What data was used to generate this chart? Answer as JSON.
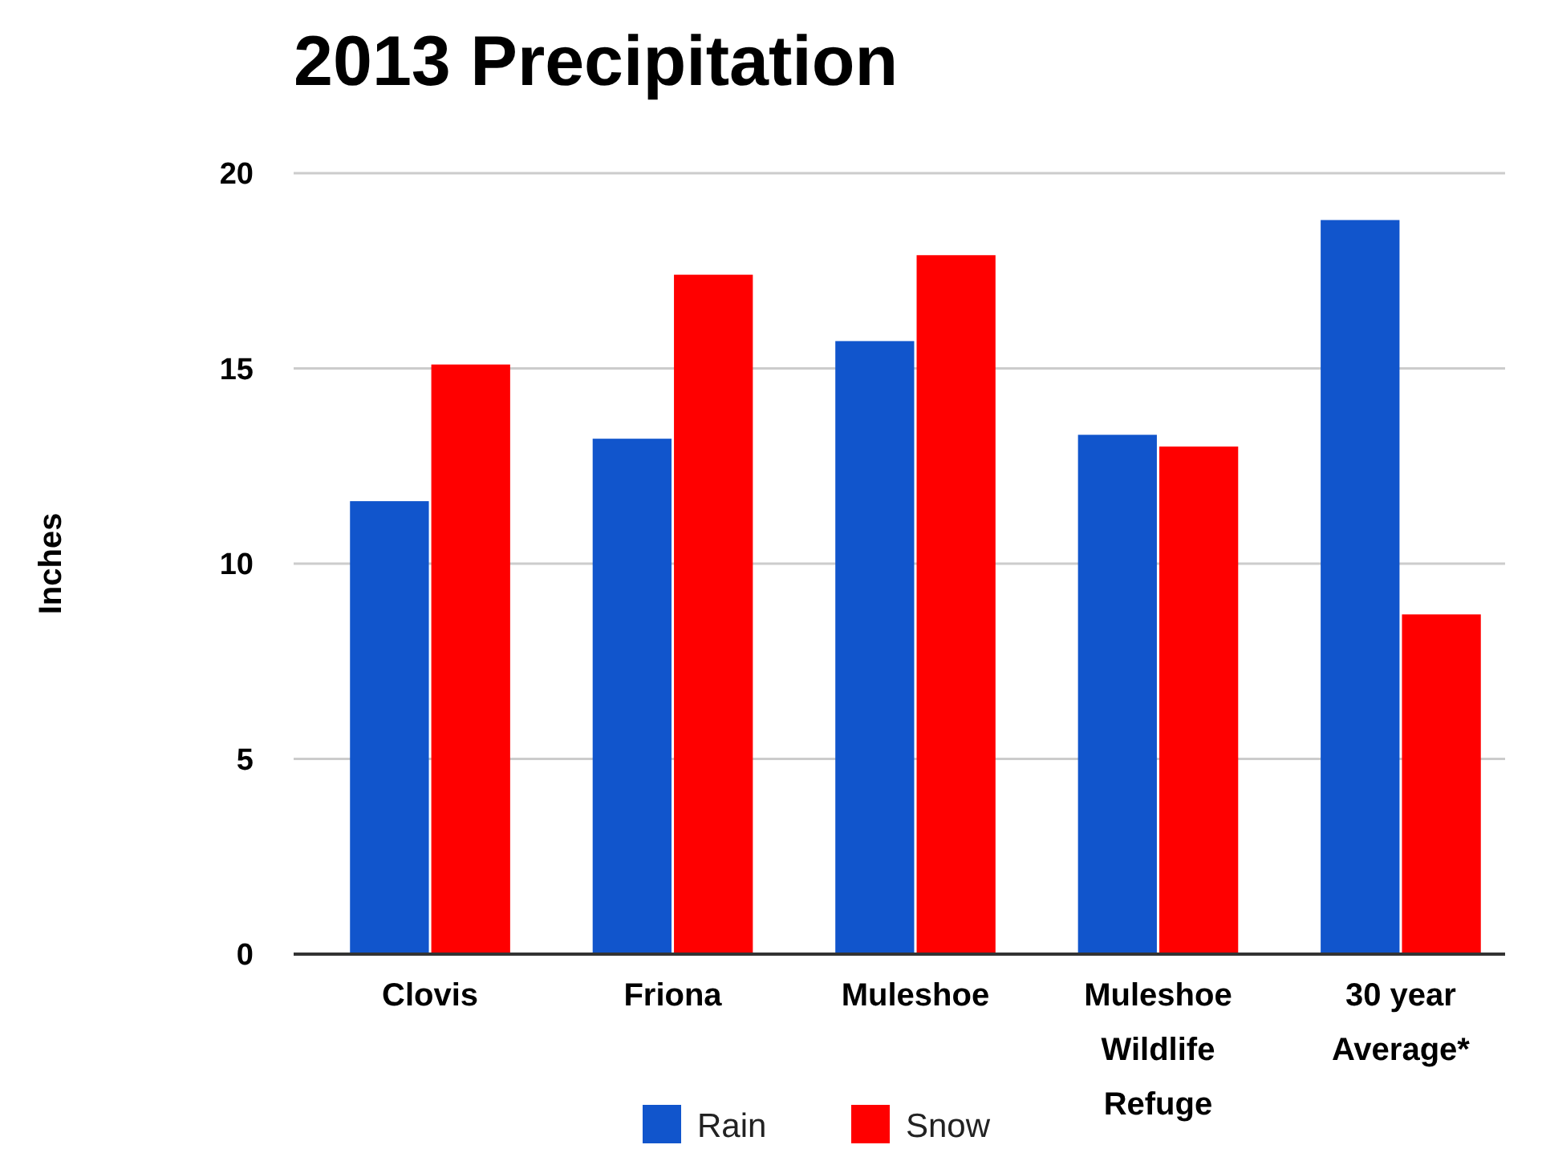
{
  "chart_data": {
    "type": "bar",
    "title": "2013 Precipitation",
    "ylabel": "Inches",
    "categories": [
      "Clovis",
      "Friona",
      "Muleshoe",
      "Muleshoe Wildlife Refuge",
      "30 year Average*"
    ],
    "series": [
      {
        "name": "Rain",
        "color": "#1155cc",
        "values": [
          11.6,
          13.2,
          15.7,
          13.3,
          18.8
        ]
      },
      {
        "name": "Snow",
        "color": "#ff0000",
        "values": [
          15.1,
          17.4,
          17.9,
          13.0,
          8.7
        ]
      }
    ],
    "ylim": [
      0,
      20
    ],
    "yticks": [
      0,
      5,
      10,
      15,
      20
    ],
    "grid": "y",
    "legend": "bottom"
  }
}
